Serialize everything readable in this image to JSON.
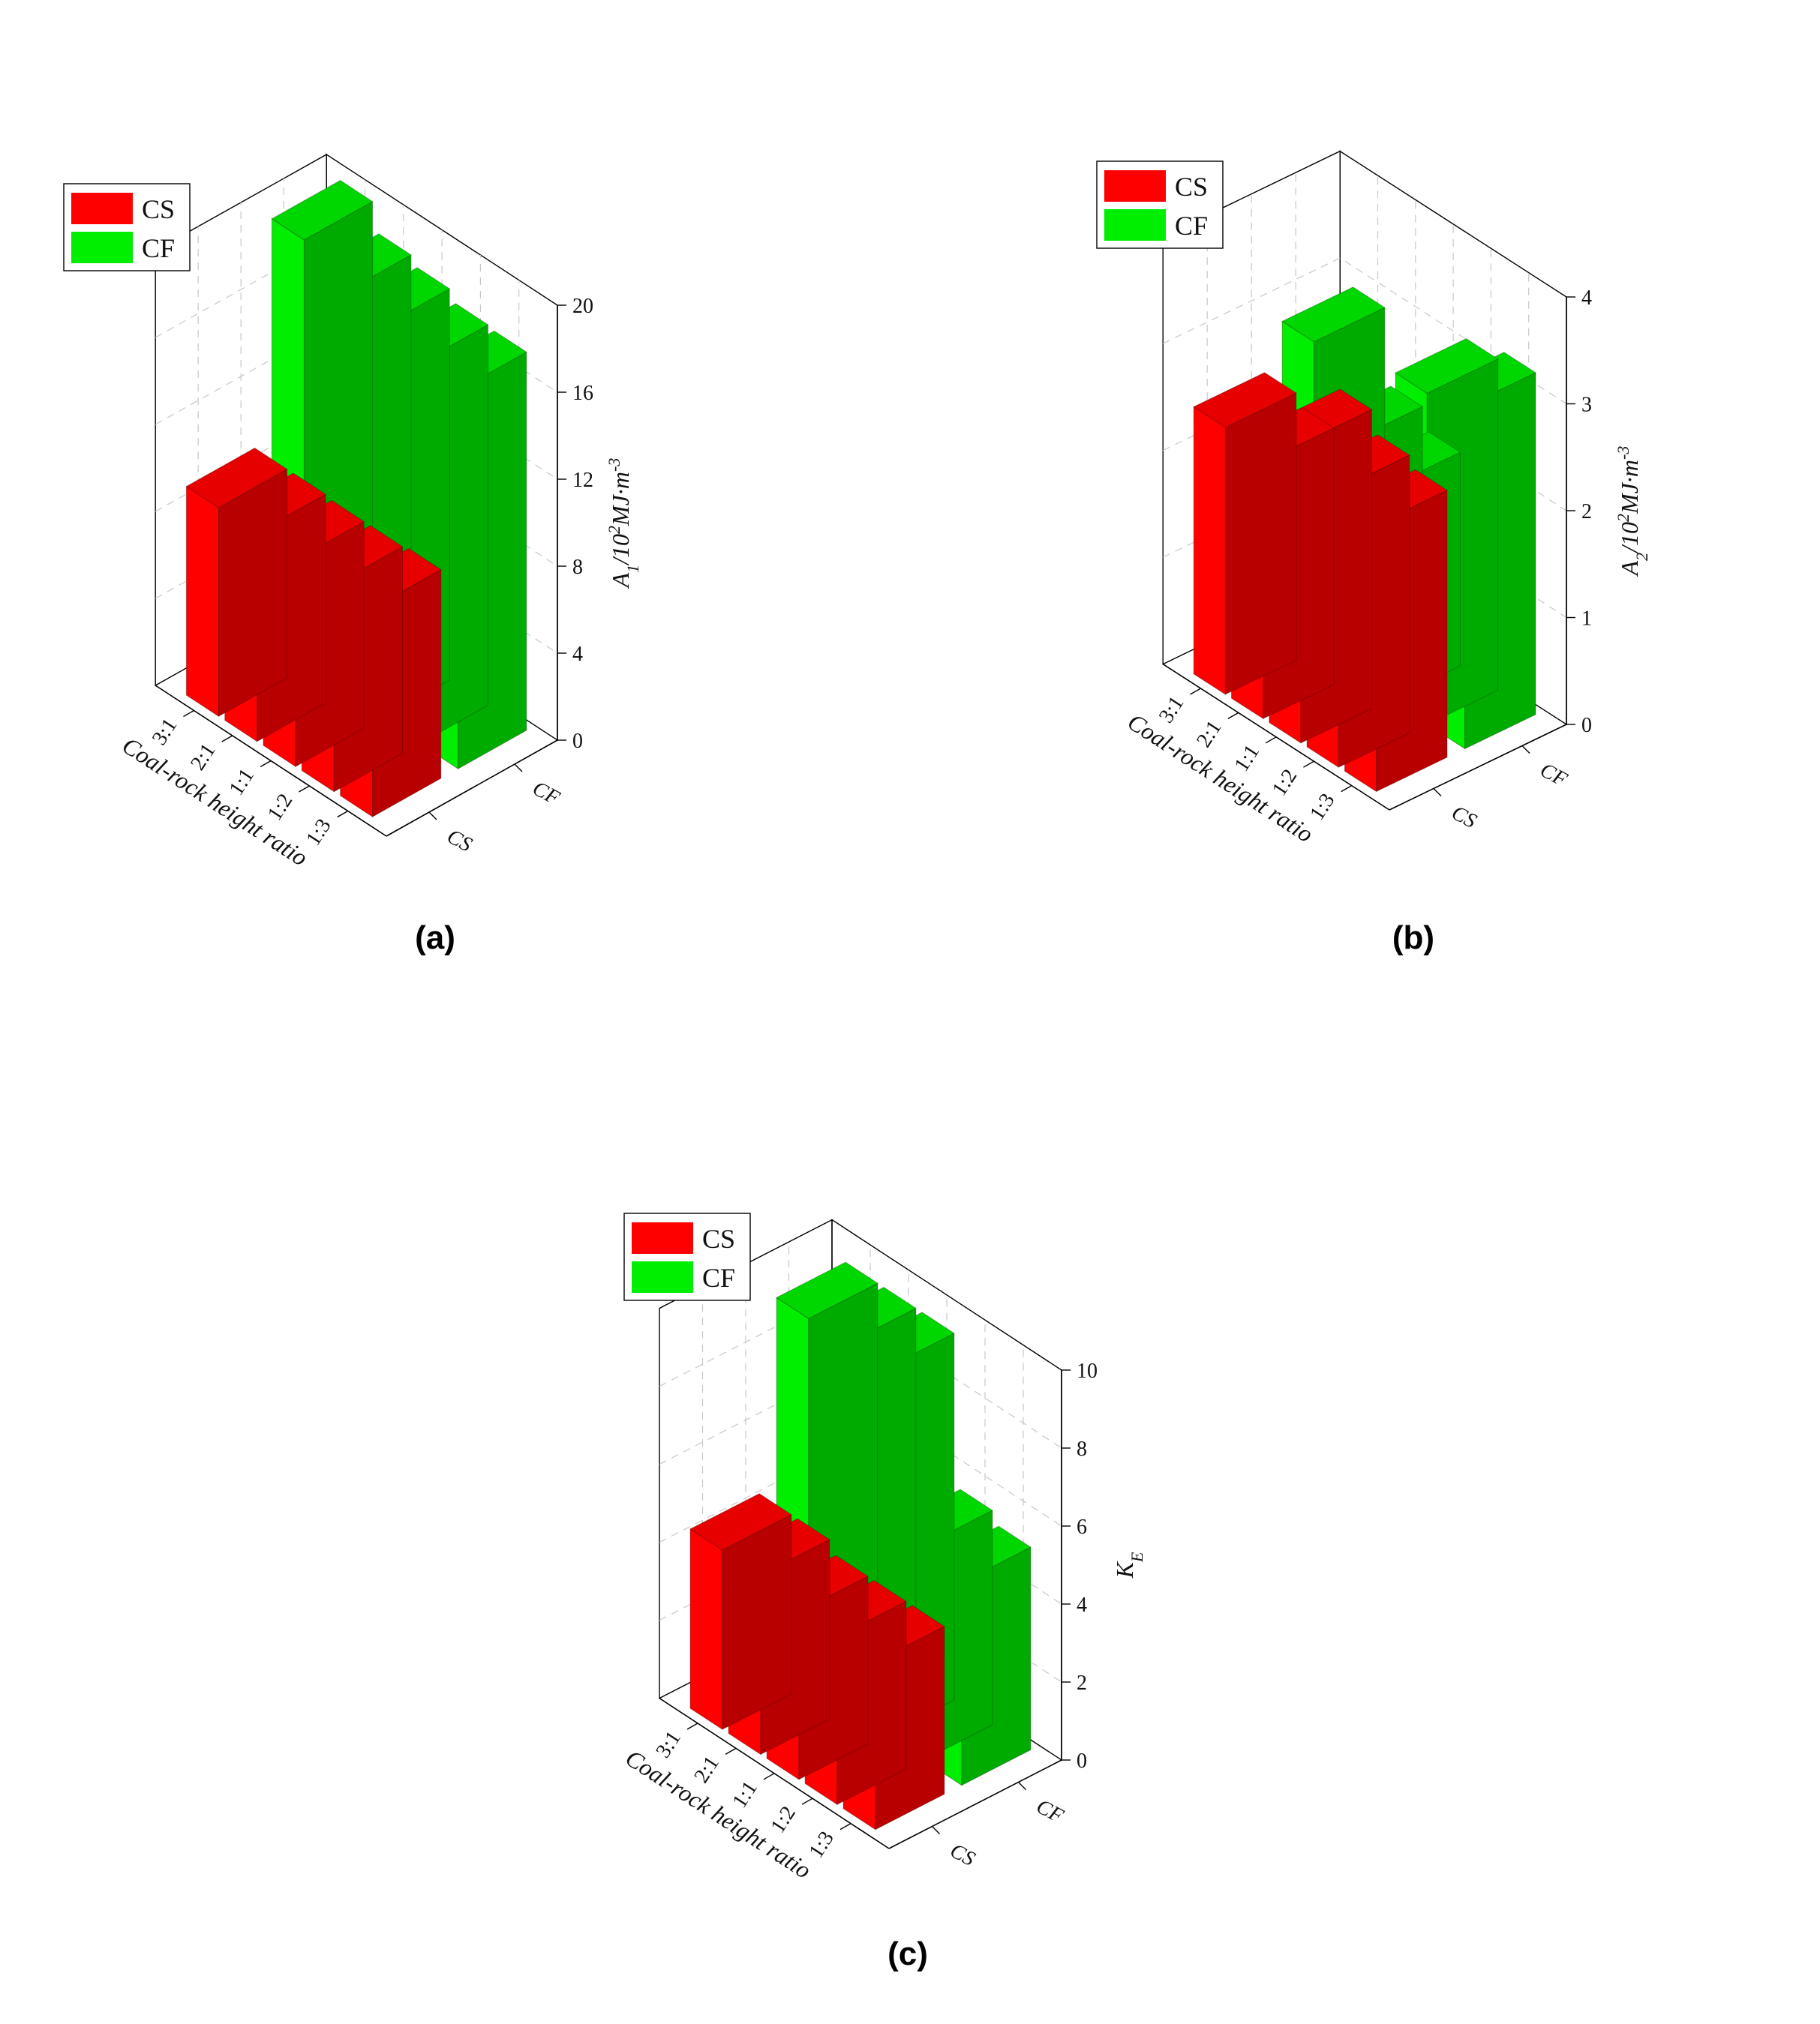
{
  "colors": {
    "CS": "#ff0000",
    "CF": "#00ee00"
  },
  "legend": [
    "CS",
    "CF"
  ],
  "chart_data": [
    {
      "id": "a",
      "panel_label": "(a)",
      "type": "bar",
      "projection": "3d",
      "xlabel": "Coal-rock height ratio",
      "categories": [
        "3:1",
        "2:1",
        "1:1",
        "1:2",
        "1:3"
      ],
      "depth_categories": [
        "CS",
        "CF"
      ],
      "zlabel_main": "A",
      "zlabel_sub": "1",
      "zlabel_rest": "/10",
      "zlabel_sup": "2",
      "zlabel_unit": "MJ·m",
      "zlabel_unit_sup": "-3",
      "zlim": [
        0,
        20
      ],
      "zticks": [
        0,
        4,
        8,
        12,
        16,
        20
      ],
      "series": [
        {
          "name": "CS",
          "values": [
            9.6,
            9.6,
            9.5,
            9.5,
            9.6
          ]
        },
        {
          "name": "CF",
          "values": [
            19.7,
            18.4,
            18.0,
            17.5,
            17.4
          ]
        }
      ],
      "grid": true,
      "legend_position": "top-left"
    },
    {
      "id": "b",
      "panel_label": "(b)",
      "type": "bar",
      "projection": "3d",
      "xlabel": "Coal-rock height ratio",
      "categories": [
        "3:1",
        "2:1",
        "1:1",
        "1:2",
        "1:3"
      ],
      "depth_categories": [
        "CS",
        "CF"
      ],
      "zlabel_main": "A",
      "zlabel_sub": "2",
      "zlabel_rest": "/10",
      "zlabel_sup": "2",
      "zlabel_unit": "MJ·m",
      "zlabel_unit_sup": "-3",
      "zlim": [
        0,
        4
      ],
      "zticks": [
        0,
        1,
        2,
        3,
        4
      ],
      "series": [
        {
          "name": "CS",
          "values": [
            2.5,
            2.4,
            2.8,
            2.6,
            2.5
          ]
        },
        {
          "name": "CF",
          "values": [
            2.9,
            2.2,
            2.0,
            3.1,
            3.2
          ]
        }
      ],
      "grid": true,
      "legend_position": "top-left"
    },
    {
      "id": "c",
      "panel_label": "(c)",
      "type": "bar",
      "projection": "3d",
      "xlabel": "Coal-rock height ratio",
      "categories": [
        "3:1",
        "2:1",
        "1:1",
        "1:2",
        "1:3"
      ],
      "depth_categories": [
        "CS",
        "CF"
      ],
      "zlabel_main": "K",
      "zlabel_sub": "E",
      "zlabel_rest": "",
      "zlabel_sup": "",
      "zlabel_unit": "",
      "zlabel_unit_sup": "",
      "zlim": [
        0,
        10
      ],
      "zticks": [
        0,
        2,
        4,
        6,
        8,
        10
      ],
      "series": [
        {
          "name": "CS",
          "values": [
            4.6,
            4.6,
            4.3,
            4.3,
            4.3
          ]
        },
        {
          "name": "CF",
          "values": [
            9.4,
            9.4,
            9.4,
            5.5,
            5.2
          ]
        }
      ],
      "grid": true,
      "legend_position": "top-left"
    }
  ]
}
